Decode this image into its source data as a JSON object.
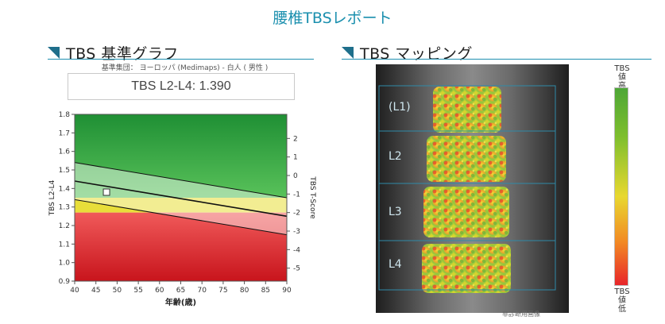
{
  "report_title": "腰椎TBSレポート",
  "left_section": {
    "title": "TBS 基準グラフ"
  },
  "right_section": {
    "title": "TBS マッピング"
  },
  "reference_group": "基準集団： ヨーロッパ (Medimaps) - 白人 ( 男性 )",
  "value_box": "TBS L2-L4: 1.390",
  "chart_data": {
    "type": "line",
    "title": "",
    "xlabel": "年齢(歳)",
    "ylabel": "TBS L2-L4",
    "y2label": "TBS T-Score",
    "xlim": [
      40,
      90
    ],
    "ylim": [
      0.9,
      1.8
    ],
    "x_ticks": [
      40,
      45,
      50,
      55,
      60,
      65,
      70,
      75,
      80,
      85,
      90
    ],
    "y_ticks": [
      0.9,
      1.0,
      1.1,
      1.2,
      1.3,
      1.4,
      1.5,
      1.6,
      1.7,
      1.8
    ],
    "y2_ticks": [
      {
        "label": "2",
        "y": 1.67
      },
      {
        "label": "1",
        "y": 1.57
      },
      {
        "label": "0",
        "y": 1.47
      },
      {
        "label": "-1",
        "y": 1.37
      },
      {
        "label": "-2",
        "y": 1.27
      },
      {
        "label": "-3",
        "y": 1.17
      },
      {
        "label": "-4",
        "y": 1.07
      },
      {
        "label": "-5",
        "y": 0.97
      }
    ],
    "zones": [
      {
        "color": "#2e9e40",
        "from": 1.35,
        "to": 1.8
      },
      {
        "color": "#e8de3a",
        "from": 1.27,
        "to": 1.35
      },
      {
        "color": "#e23438",
        "from": 0.9,
        "to": 1.27
      }
    ],
    "series": [
      {
        "x": [
          40,
          90
        ],
        "y": [
          1.54,
          1.35
        ]
      },
      {
        "x": [
          40,
          90
        ],
        "y": [
          1.44,
          1.25
        ]
      },
      {
        "x": [
          40,
          90
        ],
        "y": [
          1.34,
          1.15
        ]
      }
    ],
    "points": [
      {
        "x": 47.5,
        "y": 1.38
      }
    ]
  },
  "mapping": {
    "regions": [
      "(L1)",
      "L2",
      "L3",
      "L4"
    ],
    "footnote": "非診断用画像"
  },
  "legend": {
    "top": "TBS 値\n高",
    "bottom": "TBS 値\n低"
  }
}
